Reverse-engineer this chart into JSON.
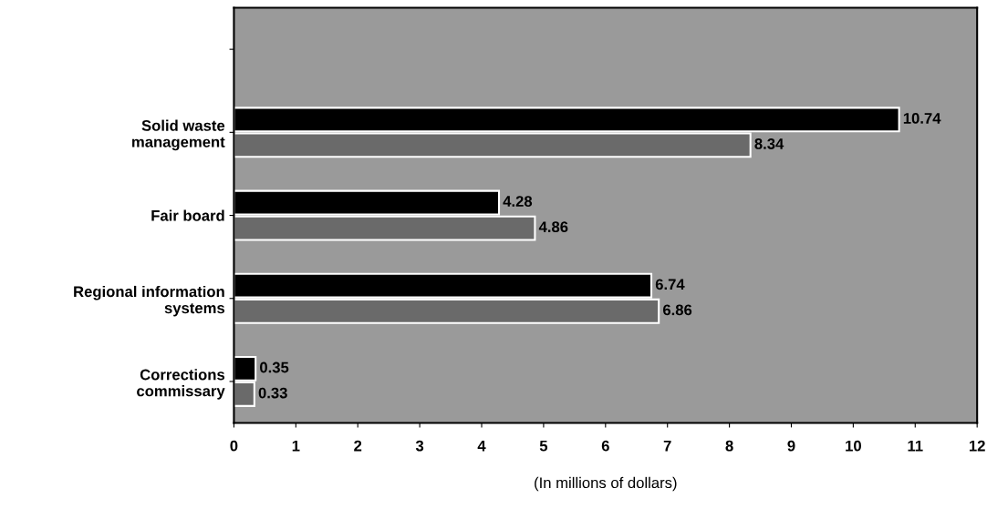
{
  "chart_data": {
    "type": "bar",
    "orientation": "horizontal",
    "xlabel": "(In millions of dollars)",
    "categories": [
      null,
      "Solid waste\nmanagement",
      "Fair board",
      "Regional information\nsystems",
      "Corrections\ncommissary"
    ],
    "series": [
      {
        "color": "#000000",
        "values": [
          null,
          10.74,
          4.28,
          6.74,
          0.35
        ]
      },
      {
        "color": "#6a6a6a",
        "values": [
          null,
          8.34,
          4.86,
          6.86,
          0.33
        ]
      }
    ],
    "xlim": [
      0,
      12
    ],
    "xticks": [
      0,
      1,
      2,
      3,
      4,
      5,
      6,
      7,
      8,
      9,
      10,
      11,
      12
    ],
    "data_labels": true,
    "grid": false
  }
}
